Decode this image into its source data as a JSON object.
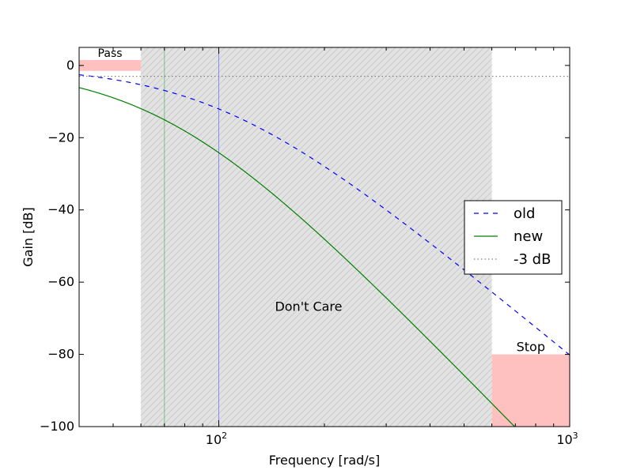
{
  "chart_data": {
    "type": "line",
    "title": "",
    "xlabel": "Frequency [rad/s]",
    "ylabel": "Gain [dB]",
    "xscale": "log",
    "xlim": [
      40,
      1000
    ],
    "ylim": [
      -100,
      5
    ],
    "x_ticks": [
      {
        "value": 100,
        "base": "10",
        "exp": "2"
      },
      {
        "value": 1000,
        "base": "10",
        "exp": "3"
      }
    ],
    "y_ticks": [
      0,
      -20,
      -40,
      -60,
      -80,
      -100
    ],
    "y_tick_labels": [
      "0",
      "−20",
      "−40",
      "−60",
      "−80",
      "−100"
    ],
    "series": [
      {
        "name": "old",
        "style": "dashed",
        "color": "#0000ff",
        "filter": {
          "cutoff": 100,
          "order": 4
        }
      },
      {
        "name": "new",
        "style": "solid",
        "color": "#007f00",
        "filter": {
          "cutoff": 70,
          "order": 5
        }
      },
      {
        "name": "-3 dB",
        "style": "dotted",
        "color": "#808080",
        "y": -3
      }
    ],
    "regions": {
      "pass": {
        "label": "Pass",
        "x": [
          40,
          60
        ],
        "y": [
          -1.5,
          1.5
        ],
        "color": "#ffc0c0"
      },
      "dont_care": {
        "label": "Don't Care",
        "x": [
          60,
          600
        ],
        "y": [
          -100,
          5
        ],
        "color": "#e2e2e2"
      },
      "stop": {
        "label": "Stop",
        "x": [
          600,
          1000
        ],
        "y": [
          -100,
          -80
        ],
        "color": "#ffc0c0"
      }
    },
    "cutoff_lines": [
      {
        "x": 100,
        "color": "#8888ff"
      },
      {
        "x": 70,
        "color": "#7fbf7f"
      }
    ],
    "legend": {
      "placement": "center-right"
    },
    "grid": false
  }
}
